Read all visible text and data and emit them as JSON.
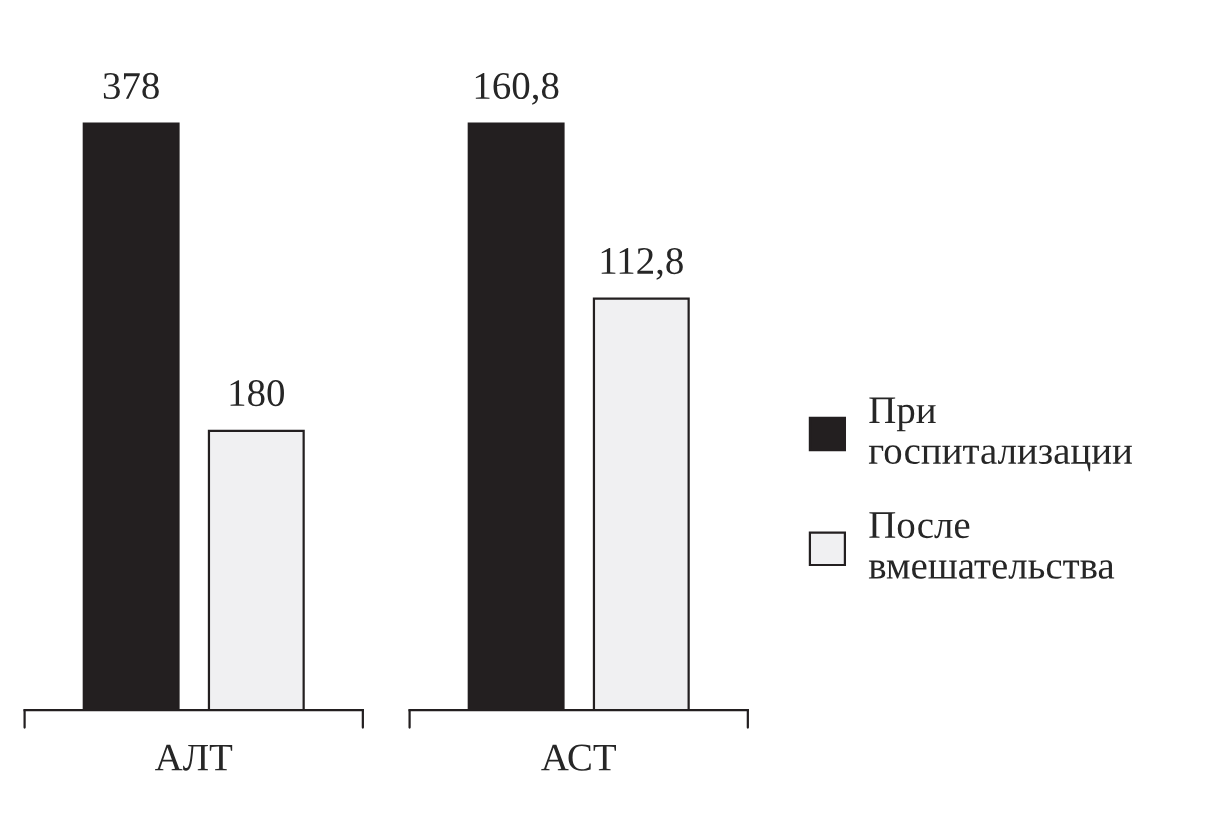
{
  "chart_data": [
    {
      "type": "bar",
      "categories": [
        "АЛТ"
      ],
      "legend": false,
      "series": [
        {
          "color": "#231f20",
          "values": [
            378
          ],
          "value_labels": [
            "378"
          ]
        },
        {
          "color": "#f0f0f2",
          "values": [
            180
          ],
          "value_labels": [
            "180"
          ]
        }
      ]
    },
    {
      "type": "bar",
      "categories": [
        "АСТ"
      ],
      "legend": "right",
      "series": [
        {
          "name": "При госпитализации",
          "color": "#231f20",
          "values": [
            160.8
          ],
          "value_labels": [
            "160,8"
          ]
        },
        {
          "name": "После вмешательства",
          "color": "#f0f0f2",
          "values": [
            112.8
          ],
          "value_labels": [
            "112,8"
          ]
        }
      ]
    }
  ]
}
